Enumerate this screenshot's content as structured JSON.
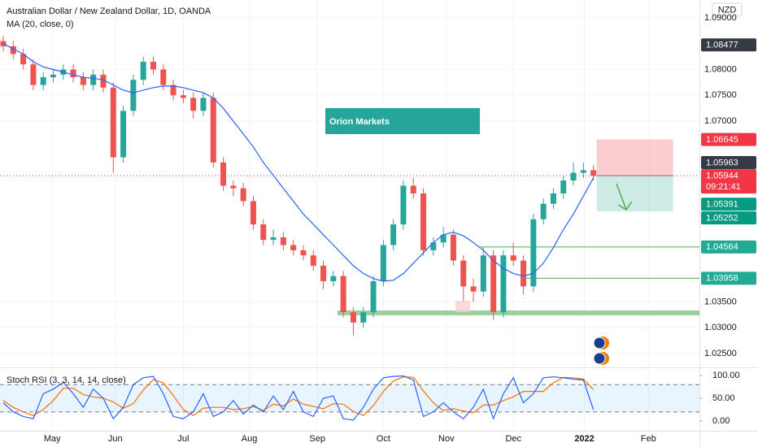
{
  "chart_data": {
    "type": "candlestick",
    "title": "Australian Dollar / New Zealand Dollar, 1D, OANDA",
    "indicator": "MA (20, close, 0)",
    "currency": "NZD",
    "watermark": "Orion Markets",
    "up_color": "#26a69a",
    "down_color": "#ef5350",
    "ma_color": "#2962ff",
    "candles": [
      [
        1.0855,
        1.0865,
        1.0835,
        1.0845
      ],
      [
        1.0845,
        1.0855,
        1.082,
        1.083
      ],
      [
        1.083,
        1.084,
        1.08,
        1.081
      ],
      [
        1.081,
        1.082,
        1.076,
        1.077
      ],
      [
        1.077,
        1.0795,
        1.076,
        1.0785
      ],
      [
        1.0785,
        1.08,
        1.0775,
        1.079
      ],
      [
        1.079,
        1.081,
        1.078,
        1.08
      ],
      [
        1.08,
        1.081,
        1.0775,
        1.0785
      ],
      [
        1.0785,
        1.0795,
        1.076,
        1.077
      ],
      [
        1.077,
        1.08,
        1.076,
        1.079
      ],
      [
        1.079,
        1.08,
        1.0755,
        1.0765
      ],
      [
        1.0765,
        1.0775,
        1.06,
        1.063
      ],
      [
        1.063,
        1.073,
        1.062,
        1.072
      ],
      [
        1.072,
        1.079,
        1.071,
        1.078
      ],
      [
        1.078,
        1.0825,
        1.077,
        1.0815
      ],
      [
        1.0815,
        1.0825,
        1.079,
        1.08
      ],
      [
        1.08,
        1.081,
        1.076,
        1.077
      ],
      [
        1.077,
        1.078,
        1.074,
        1.075
      ],
      [
        1.075,
        1.076,
        1.0735,
        1.0745
      ],
      [
        1.0745,
        1.0755,
        1.0705,
        1.072
      ],
      [
        1.072,
        1.0755,
        1.071,
        1.0745
      ],
      [
        1.0745,
        1.0755,
        1.061,
        1.062
      ],
      [
        1.062,
        1.063,
        1.0565,
        1.0575
      ],
      [
        1.0575,
        1.0585,
        1.0555,
        1.057
      ],
      [
        1.057,
        1.058,
        1.0535,
        1.0545
      ],
      [
        1.0545,
        1.0555,
        1.049,
        1.05
      ],
      [
        1.05,
        1.051,
        1.046,
        1.047
      ],
      [
        1.047,
        1.049,
        1.046,
        1.0475
      ],
      [
        1.0475,
        1.0485,
        1.045,
        1.046
      ],
      [
        1.046,
        1.047,
        1.044,
        1.045
      ],
      [
        1.045,
        1.046,
        1.043,
        1.044
      ],
      [
        1.044,
        1.045,
        1.041,
        1.042
      ],
      [
        1.042,
        1.043,
        1.0375,
        1.039
      ],
      [
        1.039,
        1.041,
        1.038,
        1.04
      ],
      [
        1.04,
        1.041,
        1.032,
        1.033
      ],
      [
        1.033,
        1.034,
        1.0285,
        1.031
      ],
      [
        1.031,
        1.034,
        1.03,
        1.033
      ],
      [
        1.033,
        1.04,
        1.032,
        1.039
      ],
      [
        1.039,
        1.047,
        1.038,
        1.046
      ],
      [
        1.046,
        1.051,
        1.045,
        1.05
      ],
      [
        1.05,
        1.0585,
        1.049,
        1.0575
      ],
      [
        1.0575,
        1.059,
        1.055,
        1.056
      ],
      [
        1.056,
        1.057,
        1.044,
        1.045
      ],
      [
        1.045,
        1.0475,
        1.044,
        1.0465
      ],
      [
        1.0465,
        1.0495,
        1.0455,
        1.048
      ],
      [
        1.048,
        1.049,
        1.042,
        1.043
      ],
      [
        1.043,
        1.044,
        1.035,
        1.038
      ],
      [
        1.038,
        1.0395,
        1.035,
        1.037
      ],
      [
        1.037,
        1.0455,
        1.036,
        1.044
      ],
      [
        1.044,
        1.045,
        1.0315,
        1.033
      ],
      [
        1.033,
        1.045,
        1.032,
        1.044
      ],
      [
        1.044,
        1.0465,
        1.042,
        1.043
      ],
      [
        1.043,
        1.044,
        1.0365,
        1.038
      ],
      [
        1.038,
        1.052,
        1.037,
        1.051
      ],
      [
        1.051,
        1.055,
        1.05,
        1.054
      ],
      [
        1.054,
        1.057,
        1.053,
        1.056
      ],
      [
        1.056,
        1.0595,
        1.055,
        1.0585
      ],
      [
        1.0585,
        1.062,
        1.0575,
        1.06
      ],
      [
        1.06,
        1.062,
        1.059,
        1.0605
      ],
      [
        1.0605,
        1.0615,
        1.0585,
        1.0594
      ]
    ],
    "ma": [
      1.085,
      1.084,
      1.083,
      1.0815,
      1.0805,
      1.08,
      1.0795,
      1.079,
      1.0785,
      1.0783,
      1.078,
      1.077,
      1.076,
      1.0755,
      1.076,
      1.0765,
      1.0768,
      1.0768,
      1.0765,
      1.076,
      1.0755,
      1.0745,
      1.0725,
      1.07,
      1.0675,
      1.065,
      1.062,
      1.0595,
      1.057,
      1.0545,
      1.052,
      1.05,
      1.048,
      1.046,
      1.044,
      1.042,
      1.0405,
      1.0395,
      1.039,
      1.0392,
      1.0405,
      1.0425,
      1.0445,
      1.0465,
      1.048,
      1.0485,
      1.0478,
      1.0465,
      1.045,
      1.043,
      1.0415,
      1.0405,
      1.04,
      1.0405,
      1.0425,
      1.0455,
      1.049,
      1.052,
      1.0555,
      1.059
    ],
    "xlim": [
      -0.325,
      69.6
    ],
    "xticks": [
      {
        "value": 4.9,
        "label": "May"
      },
      {
        "value": 11.2,
        "label": "Jun"
      },
      {
        "value": 18,
        "label": "Jul"
      },
      {
        "value": 24.6,
        "label": "Aug"
      },
      {
        "value": 31.4,
        "label": "Sep"
      },
      {
        "value": 38,
        "label": "Oct"
      },
      {
        "value": 44.3,
        "label": "Nov"
      },
      {
        "value": 51,
        "label": "Dec"
      },
      {
        "value": 58.1,
        "label": "2022"
      },
      {
        "value": 64.5,
        "label": "Feb"
      }
    ],
    "ylim": [
      1.02232,
      1.09346
    ],
    "yticks": [
      {
        "value": 1.09,
        "label": "1.09000"
      },
      {
        "value": 1.08,
        "label": "1.08000"
      },
      {
        "value": 1.075,
        "label": "1.07500"
      },
      {
        "value": 1.07,
        "label": "1.07000"
      },
      {
        "value": 1.035,
        "label": "1.03500"
      },
      {
        "value": 1.03,
        "label": "1.03000"
      },
      {
        "value": 1.025,
        "label": "1.02500"
      }
    ],
    "price_labels": [
      {
        "value": 1.08477,
        "color": "#363a45"
      },
      {
        "value": 1.06645,
        "color": "#f23645"
      },
      {
        "value": 1.05963,
        "color": "#363a45"
      },
      {
        "value": 1.05944,
        "color": "#f23645",
        "countdown": "09:21:41"
      },
      {
        "value": 1.05391,
        "color": "#089981"
      },
      {
        "value": 1.05252,
        "color": "#089981"
      },
      {
        "value": 1.04564,
        "color": "#22ab94"
      },
      {
        "value": 1.03958,
        "color": "#22ab94"
      }
    ],
    "stoch": {
      "title": "Stoch RSI (3, 3, 14, 14, close)",
      "k_color": "#2962ff",
      "d_color": "#ff6d00",
      "k": [
        40,
        20,
        10,
        5,
        60,
        70,
        85,
        60,
        30,
        70,
        50,
        5,
        30,
        80,
        95,
        98,
        60,
        10,
        5,
        20,
        60,
        10,
        20,
        45,
        15,
        35,
        20,
        55,
        25,
        65,
        20,
        10,
        50,
        55,
        5,
        2,
        30,
        70,
        95,
        98,
        99,
        90,
        10,
        20,
        40,
        20,
        5,
        30,
        70,
        5,
        60,
        95,
        40,
        60,
        95,
        97,
        95,
        92,
        90,
        25
      ],
      "d": [
        45,
        30,
        20,
        12,
        25,
        45,
        72,
        72,
        58,
        53,
        50,
        42,
        28,
        38,
        68,
        91,
        84,
        56,
        25,
        12,
        28,
        30,
        30,
        25,
        27,
        32,
        23,
        37,
        33,
        48,
        37,
        32,
        27,
        38,
        37,
        21,
        12,
        34,
        65,
        88,
        97,
        96,
        66,
        40,
        23,
        27,
        22,
        18,
        35,
        35,
        45,
        53,
        65,
        65,
        65,
        84,
        96,
        95,
        92,
        69
      ],
      "ylim": [
        -21.4,
        117.9
      ],
      "yticks": [
        {
          "value": 100,
          "label": "100.00"
        },
        {
          "value": 50,
          "label": "50.00"
        },
        {
          "value": 0,
          "label": "0.00"
        }
      ],
      "bands": [
        80,
        20
      ]
    }
  }
}
